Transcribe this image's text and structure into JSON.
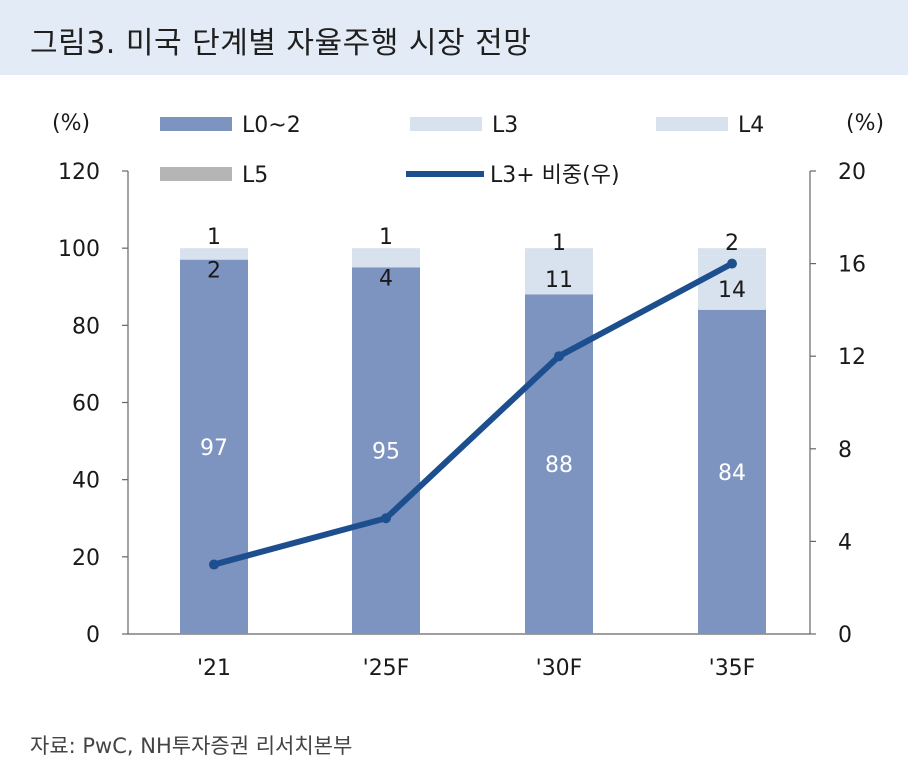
{
  "title": "그림3. 미국 단계별 자율주행 시장 전망",
  "source": "자료: PwC, NH투자증권 리서치본부",
  "colors": {
    "title_bg": "#e3ebf6",
    "L0_2": "#7d93c0",
    "L3": "#d8e2ef",
    "L4": "#d8e2ef",
    "L5": "#b5b5b5",
    "line": "#1d4f8f"
  },
  "chart_data": {
    "type": "bar",
    "stacked": true,
    "categories": [
      "'21",
      "'25F",
      "'30F",
      "'35F"
    ],
    "series": [
      {
        "name": "L0~2",
        "values": [
          97,
          95,
          88,
          84
        ],
        "axis": "left"
      },
      {
        "name": "L3",
        "values": [
          2,
          4,
          11,
          14
        ],
        "axis": "left"
      },
      {
        "name": "L4",
        "values": [
          1,
          1,
          1,
          2
        ],
        "axis": "left"
      },
      {
        "name": "L5",
        "values": [
          0,
          0,
          0,
          0
        ],
        "axis": "left"
      }
    ],
    "line_series": {
      "name": "L3+ 비중(우)",
      "values": [
        3,
        5,
        12,
        16
      ],
      "axis": "right"
    },
    "left_axis": {
      "label": "(%)",
      "ylim": [
        0,
        120
      ],
      "ticks": [
        0,
        20,
        40,
        60,
        80,
        100,
        120
      ]
    },
    "right_axis": {
      "label": "(%)",
      "ylim": [
        0,
        20
      ],
      "ticks": [
        0,
        4,
        8,
        12,
        16,
        20
      ]
    },
    "legend": [
      "L0~2",
      "L3",
      "L4",
      "L5",
      "L3+ 비중(우)"
    ],
    "legend_position": "top",
    "grid": false
  }
}
